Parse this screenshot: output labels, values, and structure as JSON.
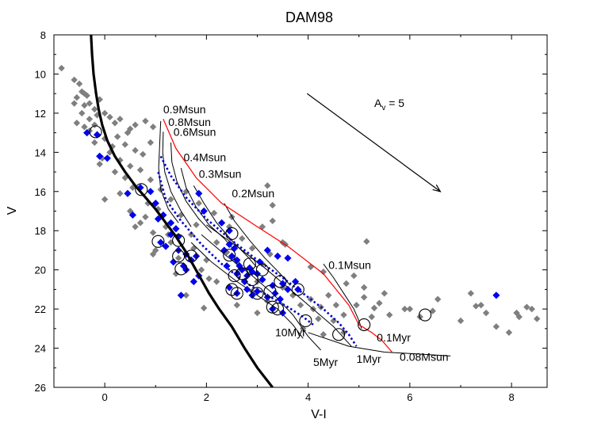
{
  "chart_data": {
    "type": "scatter",
    "title": "DAM98",
    "xlabel": "V-I",
    "ylabel": "V",
    "xlim": [
      -1,
      8.7
    ],
    "ylim": [
      26,
      8
    ],
    "y_inverted": true,
    "grid": false,
    "x_ticks": [
      0,
      2,
      4,
      6,
      8
    ],
    "y_ticks": [
      8,
      10,
      12,
      14,
      16,
      18,
      20,
      22,
      24,
      26
    ],
    "colors": {
      "gray_points": "#7f7f7f",
      "blue_points": "#0000ee",
      "mass_tracks": "#000000",
      "isochrone_0_1myr": "#ff0000",
      "blue_isochrone": "#0000cc",
      "main_sequence": "#000000"
    },
    "extinction_vector": {
      "label_base": "A",
      "label_sub": "v",
      "label_rest": " = 5",
      "x": [
        3.98,
        6.6
      ],
      "y": [
        11.0,
        16.0
      ]
    },
    "mass_labels": [
      {
        "text": "0.9Msun",
        "x": 1.15,
        "y": 12.0
      },
      {
        "text": "0.8Msun",
        "x": 1.25,
        "y": 12.65
      },
      {
        "text": "0.6Msun",
        "x": 1.35,
        "y": 13.15
      },
      {
        "text": "0.4Msun",
        "x": 1.55,
        "y": 14.45
      },
      {
        "text": "0.3Msun",
        "x": 1.85,
        "y": 15.3
      },
      {
        "text": "0.2Msun",
        "x": 2.5,
        "y": 16.3
      },
      {
        "text": "0.1Msun",
        "x": 4.4,
        "y": 19.95
      },
      {
        "text": "0.08Msun",
        "x": 5.8,
        "y": 24.65
      }
    ],
    "isochrone_labels": [
      {
        "text": "0.1Myr",
        "x": 5.35,
        "y": 23.65
      },
      {
        "text": "10Myr",
        "x": 3.35,
        "y": 23.4
      },
      {
        "text": "5Myr",
        "x": 4.1,
        "y": 24.9
      },
      {
        "text": "1Myr",
        "x": 4.95,
        "y": 24.75
      }
    ],
    "main_sequence": {
      "x": [
        -0.27,
        -0.25,
        -0.22,
        -0.17,
        -0.12,
        -0.05,
        0.05,
        0.2,
        0.4,
        0.6,
        0.8,
        1.0,
        1.2,
        1.4,
        1.6,
        1.75,
        1.9,
        2.05,
        2.25,
        2.5,
        2.75,
        3.0,
        3.3
      ],
      "y": [
        8.0,
        9.0,
        10.0,
        11.0,
        11.8,
        12.6,
        13.4,
        14.2,
        15.0,
        15.7,
        16.3,
        16.9,
        17.6,
        18.3,
        19.1,
        19.8,
        20.5,
        21.2,
        22.0,
        22.9,
        24.0,
        25.0,
        26.0
      ]
    },
    "isochrone_0_1myr": {
      "x": [
        1.15,
        1.4,
        1.8,
        2.3,
        3.0,
        3.6,
        4.3,
        4.8,
        5.0,
        5.25,
        5.45,
        5.65
      ],
      "y": [
        12.3,
        13.8,
        15.3,
        16.6,
        17.8,
        18.8,
        20.2,
        21.8,
        22.8,
        23.2,
        23.6,
        24.2
      ]
    },
    "blue_isochrone_outer": {
      "x": [
        1.1,
        1.3,
        1.6,
        2.0,
        2.5,
        3.0,
        3.5,
        3.95,
        4.3,
        4.6,
        4.8,
        4.95
      ],
      "y": [
        14.2,
        15.2,
        16.3,
        17.4,
        18.5,
        19.5,
        20.4,
        21.3,
        22.0,
        22.7,
        23.3,
        23.9
      ]
    },
    "blue_isochrone_inner": {
      "x": [
        1.05,
        1.2,
        1.5,
        1.9,
        2.3,
        2.8,
        3.2,
        3.6,
        3.9,
        4.1
      ],
      "y": [
        15.0,
        16.4,
        17.5,
        18.7,
        19.7,
        20.7,
        21.3,
        21.9,
        22.4,
        22.8
      ]
    },
    "isochrone_black": [
      {
        "label": "10Myr",
        "x": [
          1.7,
          2.1,
          2.6,
          3.0,
          3.4,
          3.7,
          3.9
        ],
        "y": [
          18.6,
          19.6,
          20.6,
          21.3,
          22.0,
          22.8,
          23.5
        ]
      },
      {
        "label": "5Myr",
        "x": [
          1.9,
          2.4,
          2.9,
          3.3,
          3.7,
          4.0,
          4.25
        ],
        "y": [
          18.2,
          19.3,
          20.3,
          21.2,
          22.3,
          23.4,
          24.1
        ]
      },
      {
        "label": "1Myr",
        "x": [
          2.0,
          2.6,
          3.1,
          3.6,
          4.05,
          4.5,
          4.85
        ],
        "y": [
          17.7,
          18.8,
          19.8,
          20.9,
          21.9,
          22.9,
          23.9
        ]
      }
    ],
    "mass_tracks": [
      {
        "label": "0.9Msun",
        "x": [
          1.1,
          1.08,
          1.06,
          1.1,
          1.25,
          1.45
        ],
        "y": [
          12.4,
          13.6,
          14.8,
          15.9,
          16.9,
          17.6
        ]
      },
      {
        "label": "0.8Msun",
        "x": [
          1.15,
          1.14,
          1.18,
          1.3,
          1.5,
          1.7
        ],
        "y": [
          12.95,
          14.0,
          15.0,
          16.0,
          17.0,
          17.8
        ]
      },
      {
        "label": "0.6Msun",
        "x": [
          1.3,
          1.32,
          1.42,
          1.6,
          1.85,
          2.1
        ],
        "y": [
          13.5,
          14.5,
          15.5,
          16.5,
          17.4,
          18.1
        ]
      },
      {
        "label": "0.4Msun",
        "x": [
          1.5,
          1.6,
          1.8,
          2.05,
          2.35,
          2.55
        ],
        "y": [
          14.8,
          15.8,
          16.8,
          17.7,
          18.4,
          19.0
        ]
      },
      {
        "label": "0.3Msun",
        "x": [
          1.75,
          1.95,
          2.2,
          2.5,
          2.8,
          3.0
        ],
        "y": [
          15.7,
          16.6,
          17.6,
          18.5,
          19.3,
          19.9
        ]
      },
      {
        "label": "0.2Msun",
        "x": [
          2.35,
          2.55,
          2.85,
          3.15,
          3.45,
          3.65
        ],
        "y": [
          16.6,
          17.5,
          18.5,
          19.4,
          20.2,
          20.8
        ]
      },
      {
        "label": "0.1Msun",
        "x": [
          4.3,
          4.5,
          4.7,
          4.9,
          5.0,
          5.05
        ],
        "y": [
          19.7,
          20.4,
          21.2,
          22.0,
          22.6,
          23.0
        ]
      },
      {
        "label": "0.08Msun",
        "x": [
          4.0,
          4.8,
          5.5,
          6.2,
          6.8
        ],
        "y": [
          23.2,
          23.9,
          24.2,
          24.3,
          24.4
        ]
      }
    ],
    "gray_points": [
      [
        -0.85,
        9.7
      ],
      [
        -0.6,
        10.3
      ],
      [
        -0.5,
        10.5
      ],
      [
        -0.45,
        10.9
      ],
      [
        -0.4,
        11.0
      ],
      [
        -0.55,
        11.2
      ],
      [
        -0.35,
        11.1
      ],
      [
        -0.6,
        11.5
      ],
      [
        -0.4,
        11.6
      ],
      [
        -0.3,
        11.5
      ],
      [
        -0.2,
        11.8
      ],
      [
        -0.1,
        11.3
      ],
      [
        -0.45,
        12.0
      ],
      [
        -0.3,
        12.3
      ],
      [
        -0.15,
        12.1
      ],
      [
        0.0,
        12.0
      ],
      [
        0.1,
        12.2
      ],
      [
        -0.55,
        12.5
      ],
      [
        -0.4,
        12.7
      ],
      [
        -0.3,
        12.9
      ],
      [
        0.2,
        12.5
      ],
      [
        0.3,
        12.3
      ],
      [
        0.5,
        12.8
      ],
      [
        0.6,
        12.6
      ],
      [
        0.8,
        12.4
      ],
      [
        0.95,
        12.7
      ],
      [
        0.45,
        13.0
      ],
      [
        0.25,
        13.2
      ],
      [
        0.0,
        13.3
      ],
      [
        -0.2,
        13.5
      ],
      [
        0.15,
        13.7
      ],
      [
        0.4,
        13.6
      ],
      [
        0.6,
        13.9
      ],
      [
        0.75,
        14.1
      ],
      [
        0.9,
        13.5
      ],
      [
        0.1,
        14.0
      ],
      [
        -0.1,
        14.6
      ],
      [
        0.3,
        14.4
      ],
      [
        0.5,
        14.7
      ],
      [
        0.7,
        14.9
      ],
      [
        0.2,
        15.0
      ],
      [
        0.4,
        15.3
      ],
      [
        0.55,
        15.8
      ],
      [
        0.3,
        16.1
      ],
      [
        0.0,
        16.4
      ],
      [
        0.9,
        15.4
      ],
      [
        1.1,
        15.9
      ],
      [
        0.85,
        16.6
      ],
      [
        1.05,
        16.9
      ],
      [
        1.3,
        16.4
      ],
      [
        1.6,
        16.0
      ],
      [
        0.8,
        17.3
      ],
      [
        0.7,
        17.6
      ],
      [
        1.2,
        17.8
      ],
      [
        1.5,
        17.2
      ],
      [
        1.8,
        17.7
      ],
      [
        0.95,
        18.1
      ],
      [
        1.3,
        18.6
      ],
      [
        1.0,
        19.0
      ],
      [
        1.45,
        19.4
      ],
      [
        1.75,
        18.9
      ],
      [
        2.0,
        19.5
      ],
      [
        2.2,
        18.6
      ],
      [
        2.4,
        19.1
      ],
      [
        2.5,
        17.3
      ],
      [
        2.45,
        17.8
      ],
      [
        2.7,
        18.4
      ],
      [
        2.9,
        18.9
      ],
      [
        1.85,
        16.6
      ],
      [
        2.15,
        17.1
      ],
      [
        3.1,
        17.8
      ],
      [
        3.3,
        17.5
      ],
      [
        3.5,
        18.6
      ],
      [
        3.55,
        18.7
      ],
      [
        3.25,
        19.2
      ],
      [
        3.1,
        19.7
      ],
      [
        2.6,
        19.6
      ],
      [
        2.8,
        20.3
      ],
      [
        3.0,
        20.6
      ],
      [
        2.9,
        21.1
      ],
      [
        3.2,
        21.6
      ],
      [
        3.5,
        20.9
      ],
      [
        3.7,
        21.3
      ],
      [
        3.85,
        21.8
      ],
      [
        4.05,
        21.5
      ],
      [
        4.25,
        21.9
      ],
      [
        4.4,
        21.3
      ],
      [
        4.55,
        21.8
      ],
      [
        4.2,
        22.5
      ],
      [
        4.5,
        22.6
      ],
      [
        4.7,
        22.3
      ],
      [
        4.95,
        21.8
      ],
      [
        5.1,
        21.4
      ],
      [
        5.25,
        22.4
      ],
      [
        5.4,
        21.7
      ],
      [
        5.5,
        21.2
      ],
      [
        4.75,
        20.7
      ],
      [
        4.9,
        20.3
      ],
      [
        5.1,
        20.9
      ],
      [
        4.3,
        20.1
      ],
      [
        5.15,
        18.55
      ],
      [
        4.05,
        19.85
      ],
      [
        5.3,
        21.95
      ],
      [
        5.6,
        22.3
      ],
      [
        5.9,
        22.0
      ],
      [
        6.2,
        22.4
      ],
      [
        6.45,
        22.1
      ],
      [
        6.55,
        21.5
      ],
      [
        6.0,
        22.0
      ],
      [
        7.2,
        21.2
      ],
      [
        7.4,
        21.8
      ],
      [
        7.0,
        22.6
      ],
      [
        7.5,
        22.2
      ],
      [
        7.7,
        22.9
      ],
      [
        8.1,
        22.2
      ],
      [
        8.15,
        22.4
      ],
      [
        8.3,
        21.9
      ],
      [
        8.4,
        22.0
      ],
      [
        7.95,
        23.2
      ],
      [
        8.5,
        22.5
      ],
      [
        7.3,
        21.85
      ],
      [
        2.05,
        20.45
      ],
      [
        1.6,
        21.3
      ],
      [
        1.95,
        21.95
      ],
      [
        2.6,
        21.8
      ],
      [
        3.0,
        22.2
      ],
      [
        3.9,
        23.0
      ],
      [
        4.3,
        23.3
      ],
      [
        4.1,
        22.0
      ],
      [
        4.7,
        23.2
      ],
      [
        3.3,
        16.7
      ],
      [
        3.2,
        15.7
      ],
      [
        0.5,
        17.0
      ],
      [
        0.6,
        17.8
      ],
      [
        1.7,
        18.2
      ],
      [
        1.9,
        20.0
      ],
      [
        2.2,
        20.6
      ],
      [
        1.4,
        20.2
      ],
      [
        0.95,
        19.2
      ],
      [
        1.25,
        18.2
      ],
      [
        -0.2,
        12.6
      ],
      [
        -0.05,
        14.3
      ]
    ],
    "blue_points": [
      [
        -0.35,
        13.0
      ],
      [
        -0.15,
        13.1
      ],
      [
        -0.1,
        14.2
      ],
      [
        0.05,
        14.3
      ],
      [
        0.7,
        15.8
      ],
      [
        0.9,
        16.0
      ],
      [
        1.0,
        16.6
      ],
      [
        1.05,
        17.4
      ],
      [
        1.15,
        17.2
      ],
      [
        1.3,
        17.6
      ],
      [
        1.4,
        17.9
      ],
      [
        1.45,
        18.3
      ],
      [
        1.1,
        18.6
      ],
      [
        1.2,
        18.8
      ],
      [
        1.3,
        18.2
      ],
      [
        1.45,
        19.0
      ],
      [
        1.6,
        19.2
      ],
      [
        1.7,
        19.5
      ],
      [
        1.55,
        19.8
      ],
      [
        1.8,
        19.3
      ],
      [
        1.35,
        19.6
      ],
      [
        1.6,
        20.0
      ],
      [
        1.75,
        20.6
      ],
      [
        1.85,
        20.3
      ],
      [
        1.5,
        21.3
      ],
      [
        0.55,
        17.2
      ],
      [
        1.85,
        16.1
      ],
      [
        2.3,
        17.6
      ],
      [
        2.45,
        18.7
      ],
      [
        2.55,
        18.9
      ],
      [
        2.5,
        19.3
      ],
      [
        2.6,
        19.5
      ],
      [
        2.35,
        19.0
      ],
      [
        2.4,
        19.8
      ],
      [
        2.65,
        19.8
      ],
      [
        2.7,
        20.0
      ],
      [
        2.8,
        20.3
      ],
      [
        2.9,
        20.1
      ],
      [
        2.6,
        20.2
      ],
      [
        2.75,
        20.6
      ],
      [
        2.85,
        19.9
      ],
      [
        3.0,
        20.2
      ],
      [
        3.1,
        20.5
      ],
      [
        2.45,
        20.9
      ],
      [
        2.6,
        21.2
      ],
      [
        2.8,
        21.0
      ],
      [
        2.9,
        21.3
      ],
      [
        3.0,
        21.1
      ],
      [
        3.2,
        21.4
      ],
      [
        3.35,
        21.2
      ],
      [
        3.45,
        21.5
      ],
      [
        3.3,
        20.8
      ],
      [
        3.5,
        20.7
      ],
      [
        3.6,
        21.0
      ],
      [
        3.75,
        20.6
      ],
      [
        3.8,
        21.0
      ],
      [
        3.4,
        19.3
      ],
      [
        3.2,
        19.0
      ],
      [
        3.05,
        19.6
      ],
      [
        3.6,
        19.4
      ],
      [
        3.3,
        22.0
      ],
      [
        3.5,
        22.2
      ],
      [
        2.45,
        18.0
      ],
      [
        1.95,
        17.0
      ],
      [
        7.7,
        21.3
      ],
      [
        0.45,
        16.1
      ]
    ],
    "circled_points": [
      [
        -0.18,
        12.95
      ],
      [
        0.72,
        15.9
      ],
      [
        1.05,
        18.55
      ],
      [
        1.45,
        18.5
      ],
      [
        1.45,
        19.3
      ],
      [
        1.5,
        19.95
      ],
      [
        1.7,
        19.3
      ],
      [
        2.5,
        18.15
      ],
      [
        2.45,
        19.25
      ],
      [
        2.5,
        21.0
      ],
      [
        2.6,
        21.2
      ],
      [
        2.7,
        20.2
      ],
      [
        2.85,
        19.7
      ],
      [
        2.9,
        20.5
      ],
      [
        3.0,
        21.2
      ],
      [
        2.55,
        20.3
      ],
      [
        3.1,
        20.0
      ],
      [
        3.25,
        21.1
      ],
      [
        3.3,
        21.9
      ],
      [
        3.4,
        22.0
      ],
      [
        3.45,
        20.6
      ],
      [
        3.8,
        21.0
      ],
      [
        3.95,
        22.6
      ],
      [
        4.6,
        23.3
      ],
      [
        5.1,
        22.8
      ],
      [
        6.3,
        22.3
      ]
    ]
  }
}
